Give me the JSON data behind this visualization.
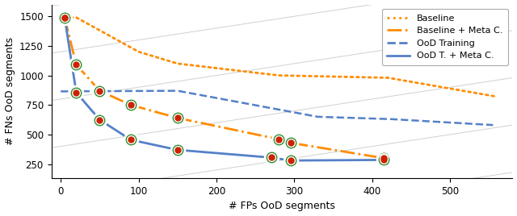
{
  "baseline_x": [
    5,
    20,
    100,
    150,
    280,
    420,
    560
  ],
  "baseline_y": [
    1490,
    1490,
    1200,
    1100,
    1000,
    980,
    820
  ],
  "baseline_meta_x": [
    5,
    20,
    50,
    90,
    150,
    280,
    295,
    415
  ],
  "baseline_meta_y": [
    1490,
    1090,
    870,
    750,
    640,
    460,
    430,
    300
  ],
  "ood_training_x": [
    0,
    150,
    330,
    425,
    555
  ],
  "ood_training_y": [
    865,
    870,
    650,
    630,
    580
  ],
  "ood_meta_x": [
    5,
    20,
    50,
    90,
    150,
    270,
    295,
    415
  ],
  "ood_meta_y": [
    1490,
    855,
    625,
    455,
    370,
    305,
    280,
    285
  ],
  "scatter_baseline_meta_x": [
    5,
    20,
    50,
    90,
    150,
    280,
    295,
    415
  ],
  "scatter_baseline_meta_y": [
    1490,
    1090,
    870,
    750,
    640,
    460,
    430,
    300
  ],
  "scatter_ood_meta_x": [
    5,
    20,
    50,
    90,
    150,
    270,
    295,
    415
  ],
  "scatter_ood_meta_y": [
    1490,
    855,
    625,
    455,
    370,
    305,
    280,
    285
  ],
  "baseline_color": "#FF8C00",
  "baseline_meta_color": "#FF8C00",
  "ood_training_color": "#5580C8",
  "ood_meta_color": "#5580C8",
  "scatter_outer_color": "#2D8B2D",
  "scatter_inner_color": "#CC2200",
  "xlabel": "# FPs OoD segments",
  "ylabel": "# FNs OoD segments",
  "xlim": [
    -12,
    580
  ],
  "ylim": [
    130,
    1600
  ],
  "yticks": [
    250,
    500,
    750,
    1000,
    1250,
    1500
  ],
  "xticks": [
    0,
    100,
    200,
    300,
    400,
    500
  ],
  "diag_offsets": [
    -400,
    0,
    400,
    800,
    1200,
    1600
  ],
  "legend_labels": [
    "Baseline",
    "Baseline + Meta C.",
    "OoD Training",
    "OoD T. + Meta C."
  ]
}
